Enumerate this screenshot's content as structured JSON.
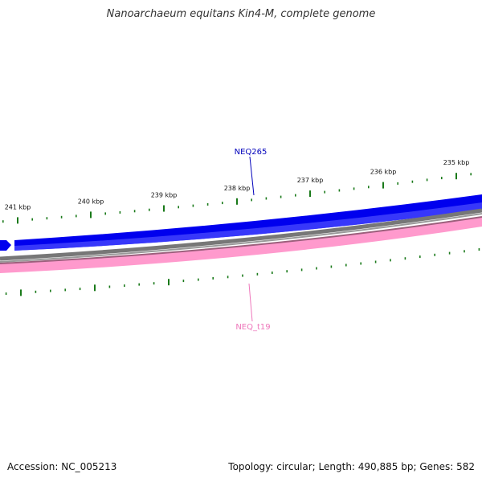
{
  "title": "Nanoarchaeum equitans Kin4-M, complete genome",
  "footer": {
    "accession": "Accession: NC_005213",
    "summary": "Topology: circular; Length: 490,885 bp; Genes: 582"
  },
  "ticks": {
    "major_labels": [
      "241 kbp",
      "240 kbp",
      "239 kbp",
      "238 kbp",
      "237 kbp",
      "236 kbp",
      "235 kbp"
    ]
  },
  "features": {
    "forward_label": "NEQ265",
    "reverse_label": "NEQ_t19"
  },
  "colors": {
    "forward_gene": "#0000ee",
    "forward_gene_light": "#4f4fff",
    "backbone": "#777777",
    "reverse_trna": "#ff9acd",
    "reverse_trna_border": "#9c5f7c",
    "tick": "#1a7a1a",
    "forward_label": "#0000bb",
    "reverse_label": "#ee77bb"
  }
}
